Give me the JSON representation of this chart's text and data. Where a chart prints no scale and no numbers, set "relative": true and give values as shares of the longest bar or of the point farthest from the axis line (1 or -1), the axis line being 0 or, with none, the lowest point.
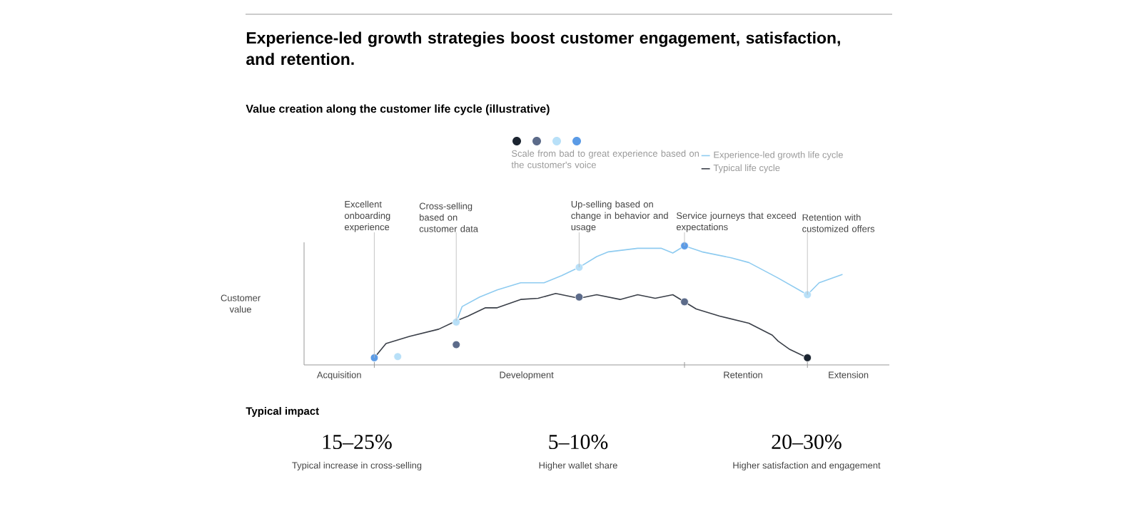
{
  "chart_data": {
    "type": "line",
    "title": "Experience-led growth strategies boost customer engagement, satisfaction, and retention.",
    "subtitle": "Value creation along the customer life cycle (illustrative)",
    "ylabel": "Customer value",
    "relative": true,
    "categories": [
      null,
      null,
      null,
      null,
      null,
      null,
      "Acquisition",
      null,
      null,
      null,
      null,
      null,
      null,
      null,
      null,
      null,
      null,
      null,
      null,
      null,
      null,
      null,
      null,
      null,
      null,
      null,
      null,
      null,
      null,
      null,
      null,
      null,
      null,
      null,
      null,
      null,
      null,
      null,
      "Development",
      null,
      null,
      null,
      null,
      null,
      null,
      null,
      null,
      null,
      null,
      null,
      null,
      null,
      null,
      null,
      null,
      null,
      null,
      null,
      null,
      null,
      null,
      null,
      null,
      null,
      null,
      null,
      null,
      null,
      null,
      null,
      null,
      null,
      null,
      null,
      null,
      "Retention",
      null,
      null,
      null,
      null,
      null,
      null,
      null,
      null,
      null,
      null,
      null,
      null,
      null,
      null,
      null,
      null,
      null,
      "Extension",
      null,
      null,
      null,
      null,
      null,
      null,
      null
    ],
    "legend": "top right",
    "series": [
      {
        "name": "Experience-led growth life cycle",
        "color": "#8ecbf0",
        "values": [
          null,
          null,
          null,
          null,
          null,
          null,
          null,
          null,
          null,
          null,
          null,
          null,
          null,
          null,
          null,
          null,
          null,
          null,
          null,
          null,
          null,
          null,
          null,
          null,
          null,
          null,
          0.36,
          0.49,
          null,
          null,
          0.57,
          null,
          null,
          0.63,
          null,
          null,
          null,
          0.69,
          null,
          null,
          null,
          0.69,
          null,
          null,
          0.75,
          null,
          null,
          0.82,
          null,
          null,
          0.91,
          null,
          0.95,
          null,
          null,
          null,
          null,
          0.98,
          null,
          null,
          null,
          0.98,
          null,
          0.94,
          null,
          1.0,
          null,
          null,
          0.95,
          null,
          null,
          null,
          null,
          0.9,
          null,
          null,
          0.86,
          null,
          null,
          null,
          null,
          0.73,
          null,
          null,
          null,
          null,
          0.59,
          null,
          0.69,
          null,
          null,
          null,
          0.76,
          null,
          null,
          null,
          null,
          null,
          null,
          null,
          null
        ]
      },
      {
        "name": "Typical life cycle",
        "color": "#3a3f48",
        "values": [
          null,
          null,
          null,
          null,
          null,
          null,
          null,
          null,
          null,
          null,
          null,
          null,
          0.06,
          null,
          0.18,
          null,
          null,
          null,
          0.24,
          null,
          null,
          null,
          null,
          0.3,
          null,
          null,
          0.37,
          null,
          0.41,
          null,
          null,
          0.48,
          null,
          0.48,
          null,
          null,
          null,
          0.55,
          null,
          null,
          0.56,
          null,
          null,
          0.6,
          null,
          null,
          null,
          0.56,
          null,
          null,
          0.59,
          null,
          null,
          null,
          0.55,
          null,
          null,
          0.59,
          null,
          null,
          0.56,
          null,
          null,
          0.59,
          null,
          0.53,
          null,
          0.47,
          null,
          null,
          null,
          0.41,
          null,
          null,
          null,
          null,
          0.35,
          null,
          null,
          null,
          0.25,
          0.2,
          null,
          0.13,
          null,
          null,
          0.06,
          null,
          null,
          null,
          null,
          null,
          null,
          null,
          null,
          null,
          null,
          null,
          null,
          null,
          null
        ]
      },
      {
        "type": "scatter",
        "marker": "circle",
        "values": [
          null,
          null,
          null,
          null,
          null,
          null,
          null,
          null,
          null,
          null,
          null,
          null,
          0.06,
          null,
          null,
          null,
          0.07,
          null,
          null,
          null,
          null,
          null,
          null,
          null,
          null,
          null,
          0.36,
          null,
          null,
          null,
          null,
          null,
          null,
          null,
          null,
          null,
          null,
          null,
          null,
          null,
          null,
          null,
          null,
          null,
          null,
          null,
          null,
          0.82,
          null,
          null,
          null,
          null,
          null,
          null,
          null,
          null,
          null,
          null,
          null,
          null,
          null,
          null,
          null,
          null,
          null,
          1.0,
          null,
          null,
          null,
          null,
          null,
          null,
          null,
          null,
          null,
          null,
          null,
          null,
          null,
          null,
          null,
          null,
          null,
          null,
          null,
          null,
          0.59,
          null,
          null,
          null,
          null,
          null,
          null,
          null,
          null,
          null,
          null,
          null,
          null,
          null,
          null
        ],
        "colors": [
          null,
          null,
          null,
          null,
          null,
          null,
          null,
          null,
          null,
          null,
          null,
          null,
          "#5b9be6",
          null,
          null,
          null,
          "#b8e0f8",
          null,
          null,
          null,
          null,
          null,
          null,
          null,
          null,
          null,
          "#b8e0f8",
          null,
          null,
          null,
          null,
          null,
          null,
          null,
          null,
          null,
          null,
          null,
          null,
          null,
          null,
          null,
          null,
          null,
          null,
          null,
          null,
          "#b8e0f8",
          null,
          null,
          null,
          null,
          null,
          null,
          null,
          null,
          null,
          null,
          null,
          null,
          null,
          null,
          null,
          null,
          null,
          "#5b9be6",
          null,
          null,
          null,
          null,
          null,
          null,
          null,
          null,
          null,
          null,
          null,
          null,
          null,
          null,
          null,
          null,
          null,
          null,
          null,
          null,
          "#b8e0f8",
          null,
          null,
          null,
          null,
          null,
          null,
          null,
          null,
          null,
          null,
          null,
          null,
          null,
          null
        ]
      },
      {
        "type": "scatter",
        "marker": "circle",
        "values": [
          null,
          null,
          null,
          null,
          null,
          null,
          null,
          null,
          null,
          null,
          null,
          null,
          null,
          null,
          null,
          null,
          null,
          null,
          null,
          null,
          null,
          null,
          null,
          null,
          null,
          null,
          0.17,
          null,
          null,
          null,
          null,
          null,
          null,
          null,
          null,
          null,
          null,
          null,
          null,
          null,
          null,
          null,
          null,
          null,
          null,
          null,
          null,
          0.57,
          null,
          null,
          null,
          null,
          null,
          null,
          null,
          null,
          null,
          null,
          null,
          null,
          null,
          null,
          null,
          null,
          null,
          0.53,
          null,
          null,
          null,
          null,
          null,
          null,
          null,
          null,
          null,
          null,
          null,
          null,
          null,
          null,
          null,
          null,
          null,
          null,
          null,
          null,
          0.06,
          null,
          null,
          null,
          null,
          null,
          null,
          null,
          null,
          null,
          null,
          null,
          null,
          null,
          null
        ],
        "colors": [
          null,
          null,
          null,
          null,
          null,
          null,
          null,
          null,
          null,
          null,
          null,
          null,
          null,
          null,
          null,
          null,
          null,
          null,
          null,
          null,
          null,
          null,
          null,
          null,
          null,
          null,
          "#5c6b8a",
          null,
          null,
          null,
          null,
          null,
          null,
          null,
          null,
          null,
          null,
          null,
          null,
          null,
          null,
          null,
          null,
          null,
          null,
          null,
          null,
          "#5c6b8a",
          null,
          null,
          null,
          null,
          null,
          null,
          null,
          null,
          null,
          null,
          null,
          null,
          null,
          null,
          null,
          null,
          null,
          "#5c6b8a",
          null,
          null,
          null,
          null,
          null,
          null,
          null,
          null,
          null,
          null,
          null,
          null,
          null,
          null,
          null,
          null,
          null,
          null,
          null,
          null,
          "#1b2430",
          null,
          null,
          null,
          null,
          null,
          null,
          null,
          null,
          null,
          null,
          null,
          null,
          null,
          null
        ]
      }
    ],
    "annotations": [
      "Excellent onboarding experience",
      "Cross-selling based on customer data",
      "Up-selling based on change in behavior and usage",
      "Service journeys that exceed expectations",
      "Retention with customized offers",
      "Scale from bad to great experience based on the customer's voice",
      "Typical impact",
      "15–25%",
      "Typical increase in cross-selling",
      "5–10%",
      "Higher wallet share",
      "20–30%",
      "Higher satisfaction and engagement"
    ]
  }
}
